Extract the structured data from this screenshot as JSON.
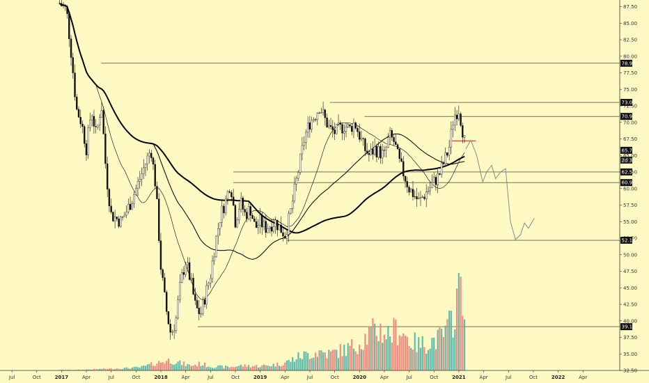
{
  "chart_data": {
    "type": "candlestick",
    "title": "",
    "xlabel": "",
    "ylabel": "",
    "ylim": [
      32.5,
      88.5
    ],
    "xlim": [
      2016.38,
      2022.62
    ],
    "grid": false,
    "y_ticks": [
      "32.50",
      "35.00",
      "37.50",
      "40.00",
      "42.50",
      "45.00",
      "47.50",
      "50.00",
      "52.50",
      "55.00",
      "57.50",
      "60.00",
      "62.50",
      "65.00",
      "67.50",
      "70.00",
      "72.50",
      "75.00",
      "77.50",
      "80.00",
      "82.50",
      "85.00",
      "87.50"
    ],
    "x_ticks": [
      {
        "label": "Jul",
        "t": 2016.5
      },
      {
        "label": "Oct",
        "t": 2016.75
      },
      {
        "label": "2017",
        "t": 2017.0,
        "year": true
      },
      {
        "label": "Apr",
        "t": 2017.25
      },
      {
        "label": "Jul",
        "t": 2017.5
      },
      {
        "label": "Oct",
        "t": 2017.75
      },
      {
        "label": "2018",
        "t": 2018.0,
        "year": true
      },
      {
        "label": "Apr",
        "t": 2018.25
      },
      {
        "label": "Jul",
        "t": 2018.5
      },
      {
        "label": "Oct",
        "t": 2018.75
      },
      {
        "label": "2019",
        "t": 2019.0,
        "year": true
      },
      {
        "label": "Apr",
        "t": 2019.25
      },
      {
        "label": "Jul",
        "t": 2019.5
      },
      {
        "label": "Oct",
        "t": 2019.75
      },
      {
        "label": "2020",
        "t": 2020.0,
        "year": true
      },
      {
        "label": "Apr",
        "t": 2020.25
      },
      {
        "label": "Jul",
        "t": 2020.5
      },
      {
        "label": "Oct",
        "t": 2020.75
      },
      {
        "label": "2021",
        "t": 2021.0,
        "year": true
      },
      {
        "label": "Apr",
        "t": 2021.25
      },
      {
        "label": "Jul",
        "t": 2021.5
      },
      {
        "label": "Oct",
        "t": 2021.75
      },
      {
        "label": "2022",
        "t": 2022.0,
        "year": true
      },
      {
        "label": "Apr",
        "t": 2022.25
      }
    ],
    "price_levels": [
      {
        "label": "78.94",
        "value": 78.94,
        "from": 2017.4
      },
      {
        "label": "73.02",
        "value": 73.02,
        "from": 2019.7
      },
      {
        "label": "70.90",
        "value": 70.9,
        "from": 2020.05
      },
      {
        "label": "65.78",
        "value": 65.78,
        "from": null
      },
      {
        "label": "2d 3h",
        "value": 64.3,
        "from": null,
        "countdown": true
      },
      {
        "label": "62.51",
        "value": 62.51,
        "from": 2018.73
      },
      {
        "label": "60.90",
        "value": 60.9,
        "from": 2018.73
      },
      {
        "label": "52.18",
        "value": 52.18,
        "from": 2019.27
      },
      {
        "label": "39.12",
        "value": 39.12,
        "from": 2018.37
      }
    ],
    "resistance_segment": {
      "x": [
        2020.93,
        2021.17
      ],
      "y": 67.2
    },
    "price_path": [
      [
        2016.98,
        88
      ],
      [
        2017.05,
        87
      ],
      [
        2017.1,
        80
      ],
      [
        2017.15,
        72
      ],
      [
        2017.2,
        70
      ],
      [
        2017.25,
        66
      ],
      [
        2017.3,
        72
      ],
      [
        2017.35,
        68
      ],
      [
        2017.4,
        73
      ],
      [
        2017.45,
        62
      ],
      [
        2017.5,
        56
      ],
      [
        2017.6,
        55
      ],
      [
        2017.7,
        58
      ],
      [
        2017.8,
        62
      ],
      [
        2017.9,
        66
      ],
      [
        2017.95,
        60
      ],
      [
        2018.0,
        48
      ],
      [
        2018.05,
        42
      ],
      [
        2018.1,
        38
      ],
      [
        2018.15,
        40
      ],
      [
        2018.2,
        46
      ],
      [
        2018.25,
        49
      ],
      [
        2018.3,
        46
      ],
      [
        2018.35,
        42
      ],
      [
        2018.4,
        41
      ],
      [
        2018.45,
        44
      ],
      [
        2018.5,
        47
      ],
      [
        2018.55,
        52
      ],
      [
        2018.6,
        56
      ],
      [
        2018.65,
        58
      ],
      [
        2018.7,
        61
      ],
      [
        2018.75,
        55
      ],
      [
        2018.8,
        58
      ],
      [
        2018.85,
        56
      ],
      [
        2018.9,
        57
      ],
      [
        2018.95,
        54
      ],
      [
        2019.0,
        55
      ],
      [
        2019.05,
        54
      ],
      [
        2019.1,
        54.5
      ],
      [
        2019.15,
        55
      ],
      [
        2019.2,
        54
      ],
      [
        2019.25,
        53
      ],
      [
        2019.3,
        56
      ],
      [
        2019.35,
        60
      ],
      [
        2019.4,
        64
      ],
      [
        2019.45,
        68
      ],
      [
        2019.5,
        70
      ],
      [
        2019.55,
        71
      ],
      [
        2019.6,
        72.5
      ],
      [
        2019.65,
        70.5
      ],
      [
        2019.7,
        69
      ],
      [
        2019.75,
        68.5
      ],
      [
        2019.8,
        69
      ],
      [
        2019.85,
        69.5
      ],
      [
        2019.9,
        69
      ],
      [
        2019.95,
        70
      ],
      [
        2020.0,
        68
      ],
      [
        2020.05,
        66
      ],
      [
        2020.1,
        65
      ],
      [
        2020.15,
        66
      ],
      [
        2020.2,
        65.5
      ],
      [
        2020.25,
        65
      ],
      [
        2020.3,
        68
      ],
      [
        2020.35,
        67
      ],
      [
        2020.4,
        64
      ],
      [
        2020.45,
        62
      ],
      [
        2020.5,
        60
      ],
      [
        2020.55,
        59
      ],
      [
        2020.6,
        58
      ],
      [
        2020.65,
        59
      ],
      [
        2020.7,
        60
      ],
      [
        2020.75,
        61
      ],
      [
        2020.8,
        62
      ],
      [
        2020.85,
        64
      ],
      [
        2020.9,
        66
      ],
      [
        2020.95,
        71
      ],
      [
        2021.0,
        72
      ],
      [
        2021.03,
        69.5
      ],
      [
        2021.07,
        66
      ]
    ],
    "projection_path": [
      [
        2021.07,
        66
      ],
      [
        2021.12,
        67.3
      ],
      [
        2021.18,
        65
      ],
      [
        2021.24,
        61
      ],
      [
        2021.28,
        62.5
      ],
      [
        2021.33,
        63.5
      ],
      [
        2021.37,
        61.5
      ],
      [
        2021.42,
        62.5
      ],
      [
        2021.47,
        63
      ],
      [
        2021.52,
        55
      ],
      [
        2021.57,
        52.3
      ],
      [
        2021.62,
        53
      ],
      [
        2021.66,
        54.8
      ],
      [
        2021.7,
        54
      ],
      [
        2021.76,
        55.5
      ]
    ],
    "volume_path": [
      [
        2016.98,
        0.2
      ],
      [
        2017.2,
        0.25
      ],
      [
        2017.4,
        0.5
      ],
      [
        2017.6,
        0.7
      ],
      [
        2017.8,
        1.1
      ],
      [
        2018.0,
        3.0
      ],
      [
        2018.1,
        3.6
      ],
      [
        2018.2,
        2.5
      ],
      [
        2018.3,
        1.7
      ],
      [
        2018.4,
        2.4
      ],
      [
        2018.5,
        1.4
      ],
      [
        2018.7,
        1.2
      ],
      [
        2018.8,
        1.7
      ],
      [
        2019.0,
        1.5
      ],
      [
        2019.2,
        2.2
      ],
      [
        2019.3,
        3.4
      ],
      [
        2019.4,
        5.0
      ],
      [
        2019.5,
        5.8
      ],
      [
        2019.6,
        6.6
      ],
      [
        2019.7,
        5.8
      ],
      [
        2019.8,
        6.8
      ],
      [
        2019.9,
        7.8
      ],
      [
        2020.0,
        9.8
      ],
      [
        2020.1,
        12.8
      ],
      [
        2020.2,
        14.2
      ],
      [
        2020.3,
        12.5
      ],
      [
        2020.4,
        14.8
      ],
      [
        2020.5,
        10.5
      ],
      [
        2020.6,
        8.8
      ],
      [
        2020.7,
        10.0
      ],
      [
        2020.8,
        11.0
      ],
      [
        2020.88,
        13.5
      ],
      [
        2020.95,
        19.5
      ],
      [
        2021.0,
        30.0
      ],
      [
        2021.03,
        34.0
      ],
      [
        2021.06,
        22.0
      ]
    ]
  }
}
